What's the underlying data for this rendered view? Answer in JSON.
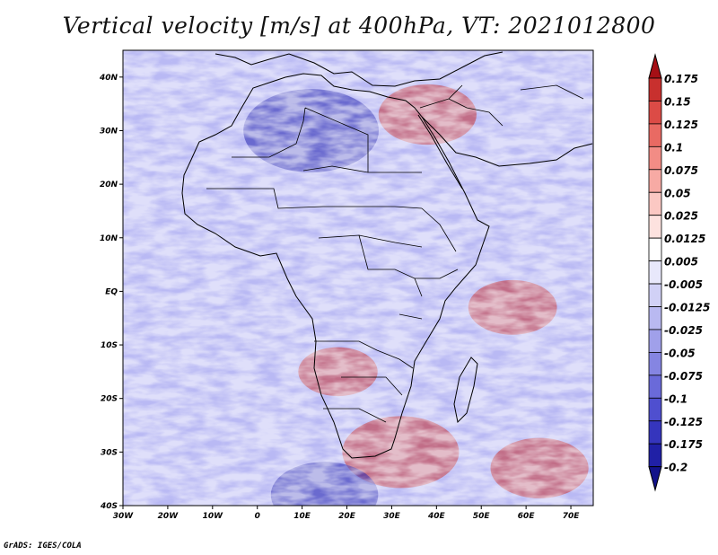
{
  "title": "Vertical velocity [m/s] at 400hPa, VT: 2021012800",
  "credit": "GrADS: IGES/COLA",
  "colors": {
    "background_field": "#b9b9f4",
    "coast": "#000000"
  },
  "map": {
    "lon_range": [
      -30,
      75
    ],
    "lat_range": [
      -40,
      45
    ],
    "lon_ticks": [
      {
        "value": -30,
        "label": "30W"
      },
      {
        "value": -20,
        "label": "20W"
      },
      {
        "value": -10,
        "label": "10W"
      },
      {
        "value": 0,
        "label": "0"
      },
      {
        "value": 10,
        "label": "10E"
      },
      {
        "value": 20,
        "label": "20E"
      },
      {
        "value": 30,
        "label": "30E"
      },
      {
        "value": 40,
        "label": "40E"
      },
      {
        "value": 50,
        "label": "50E"
      },
      {
        "value": 60,
        "label": "60E"
      },
      {
        "value": 70,
        "label": "70E"
      }
    ],
    "lat_ticks": [
      {
        "value": 40,
        "label": "40N"
      },
      {
        "value": 30,
        "label": "30N"
      },
      {
        "value": 20,
        "label": "20N"
      },
      {
        "value": 10,
        "label": "10N"
      },
      {
        "value": 0,
        "label": "EQ"
      },
      {
        "value": -10,
        "label": "10S"
      },
      {
        "value": -20,
        "label": "20S"
      },
      {
        "value": -30,
        "label": "30S"
      },
      {
        "value": -40,
        "label": "40S"
      }
    ],
    "features": [
      {
        "name": "strong-ascent-mediterranean-cyclone",
        "lon": 12,
        "lat": 30,
        "w": 0.25,
        "sign": -1
      },
      {
        "name": "strong-descent-south-africa-band",
        "lon": 32,
        "lat": -30,
        "w": 0.2,
        "sign": 1
      },
      {
        "name": "descent-patch-indian-ocean",
        "lon": 57,
        "lat": -3,
        "w": 0.125,
        "sign": 1
      },
      {
        "name": "descent-patch-south-indian-ocean",
        "lon": 63,
        "lat": -33,
        "w": 0.15,
        "sign": 1
      },
      {
        "name": "ascent-southern-ocean",
        "lon": 15,
        "lat": -38,
        "w": 0.175,
        "sign": -1
      },
      {
        "name": "descent-angola-patch",
        "lon": 18,
        "lat": -15,
        "w": 0.1,
        "sign": 1
      },
      {
        "name": "descent-middle-east",
        "lon": 38,
        "lat": 33,
        "w": 0.15,
        "sign": 1
      }
    ]
  },
  "legend": {
    "levels": [
      "0.175",
      "0.15",
      "0.125",
      "0.1",
      "0.075",
      "0.05",
      "0.025",
      "0.0125",
      "0.005",
      "-0.005",
      "-0.0125",
      "-0.025",
      "-0.05",
      "-0.075",
      "-0.1",
      "-0.125",
      "-0.175",
      "-0.2"
    ],
    "colors": [
      "#a50f15",
      "#c8302e",
      "#dc4b46",
      "#e96a63",
      "#f28c85",
      "#f7aaa4",
      "#fbc8c3",
      "#fde2df",
      "#ffffff",
      "#e8e8fb",
      "#d1d1f6",
      "#b9b9f1",
      "#a0a0ea",
      "#8585e2",
      "#6a6ad9",
      "#4f4fcf",
      "#3535bd",
      "#2020a6",
      "#12128a"
    ]
  }
}
